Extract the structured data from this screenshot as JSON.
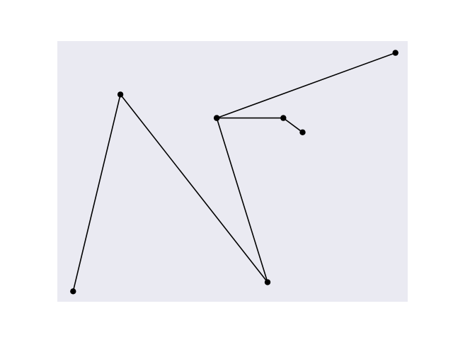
{
  "colors": {
    "plot_background": "#eaeaf2",
    "line": "#000000",
    "marker": "#000000",
    "figure_background": "#ffffff"
  },
  "chart_data": {
    "type": "line",
    "title": "",
    "xlabel": "",
    "ylabel": "",
    "grid": false,
    "axes_visible": false,
    "xlim": [
      0,
      100
    ],
    "ylim": [
      0,
      100
    ],
    "series": [
      {
        "marker": "circle",
        "x": [
          4.5,
          18.0,
          60.0,
          45.5,
          96.5,
          45.5,
          64.5,
          70.0
        ],
        "y": [
          4.0,
          79.5,
          7.5,
          70.5,
          95.5,
          70.5,
          70.5,
          65.0
        ]
      }
    ]
  }
}
